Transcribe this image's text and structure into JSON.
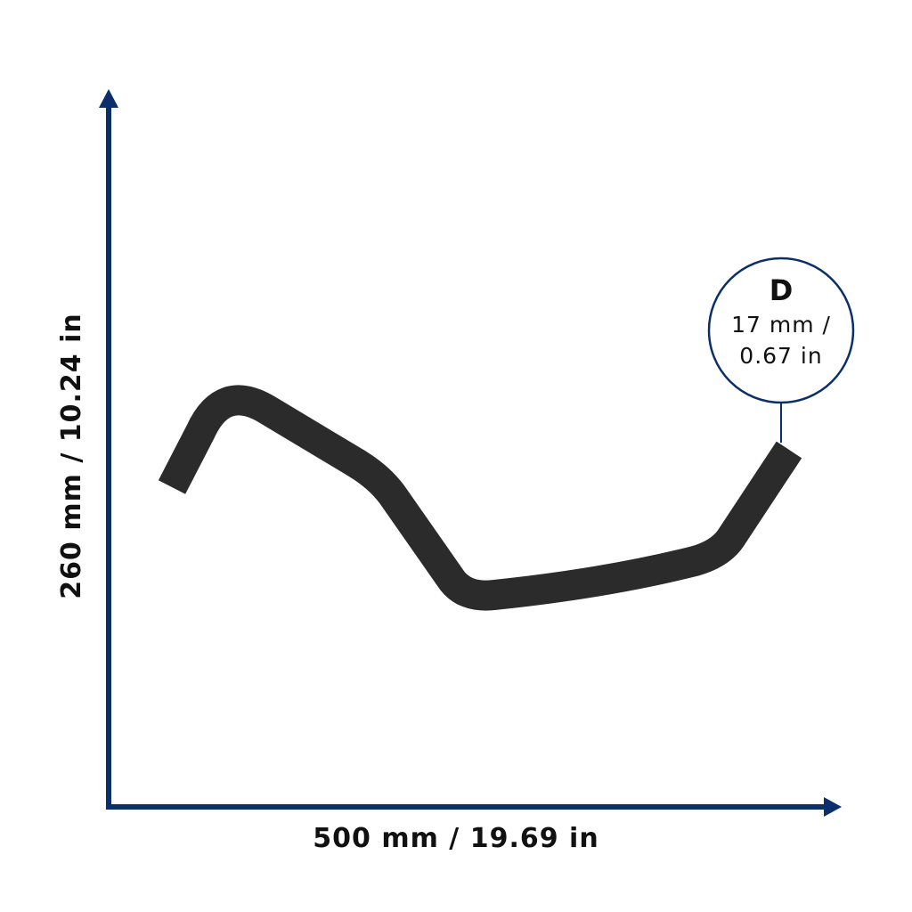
{
  "dimensions": {
    "height": "260 mm / 10.24 in",
    "width": "500 mm / 19.69 in"
  },
  "diameter": {
    "letter": "D",
    "lines": [
      "17 mm /",
      "0.67 in"
    ]
  }
}
